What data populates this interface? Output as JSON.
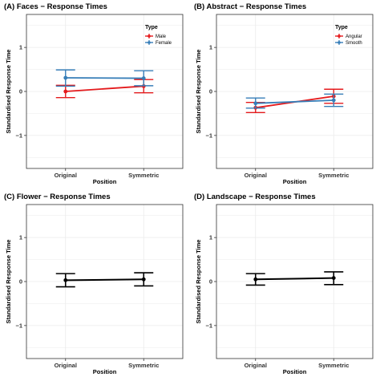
{
  "figure": {
    "colors": {
      "red": "#e41a1c",
      "blue": "#377eb8",
      "black": "#000000",
      "grid": "#ebebeb"
    }
  },
  "chart_data": [
    {
      "type": "line",
      "title": "(A) Faces − Response Times",
      "xlabel": "Position",
      "ylabel": "Standardised Response Time",
      "categories": [
        "Original",
        "Symmetric"
      ],
      "ylim": [
        -1.75,
        1.75
      ],
      "yticks": [
        "1",
        "0",
        "−1"
      ],
      "ytick_values": [
        1,
        0,
        -1
      ],
      "grid": true,
      "legend": {
        "title": "Type",
        "position": "top-right"
      },
      "series": [
        {
          "name": "Male",
          "color": "#e41a1c",
          "values": [
            0.0,
            0.12
          ],
          "lower": [
            -0.14,
            -0.03
          ],
          "upper": [
            0.14,
            0.27
          ]
        },
        {
          "name": "Female",
          "color": "#377eb8",
          "values": [
            0.31,
            0.3
          ],
          "lower": [
            0.12,
            0.13
          ],
          "upper": [
            0.49,
            0.47
          ]
        }
      ]
    },
    {
      "type": "line",
      "title": "(B) Abstract − Response Times",
      "xlabel": "Position",
      "ylabel": "Standardised Response Time",
      "categories": [
        "Original",
        "Symmetric"
      ],
      "ylim": [
        -1.75,
        1.75
      ],
      "yticks": [
        "1",
        "0",
        "−1"
      ],
      "ytick_values": [
        1,
        0,
        -1
      ],
      "grid": true,
      "legend": {
        "title": "Type",
        "position": "top-right"
      },
      "series": [
        {
          "name": "Angular",
          "color": "#e41a1c",
          "values": [
            -0.37,
            -0.11
          ],
          "lower": [
            -0.48,
            -0.27
          ],
          "upper": [
            -0.25,
            0.05
          ]
        },
        {
          "name": "Smooth",
          "color": "#377eb8",
          "values": [
            -0.27,
            -0.2
          ],
          "lower": [
            -0.38,
            -0.34
          ],
          "upper": [
            -0.15,
            -0.06
          ]
        }
      ]
    },
    {
      "type": "line",
      "title": "(C) Flower − Response Times",
      "xlabel": "Position",
      "ylabel": "Standardised Response Time",
      "categories": [
        "Original",
        "Symmetric"
      ],
      "ylim": [
        -1.75,
        1.75
      ],
      "yticks": [
        "1",
        "0",
        "−1"
      ],
      "ytick_values": [
        1,
        0,
        -1
      ],
      "grid": true,
      "series": [
        {
          "color": "#000000",
          "values": [
            0.03,
            0.05
          ],
          "lower": [
            -0.12,
            -0.1
          ],
          "upper": [
            0.18,
            0.2
          ]
        }
      ]
    },
    {
      "type": "line",
      "title": "(D) Landscape − Response Times",
      "xlabel": "Position",
      "ylabel": "Standardised Response Time",
      "categories": [
        "Original",
        "Symmetric"
      ],
      "ylim": [
        -1.75,
        1.75
      ],
      "yticks": [
        "1",
        "0",
        "−1"
      ],
      "ytick_values": [
        1,
        0,
        -1
      ],
      "grid": true,
      "series": [
        {
          "color": "#000000",
          "values": [
            0.05,
            0.08
          ],
          "lower": [
            -0.08,
            -0.07
          ],
          "upper": [
            0.18,
            0.22
          ]
        }
      ]
    }
  ]
}
